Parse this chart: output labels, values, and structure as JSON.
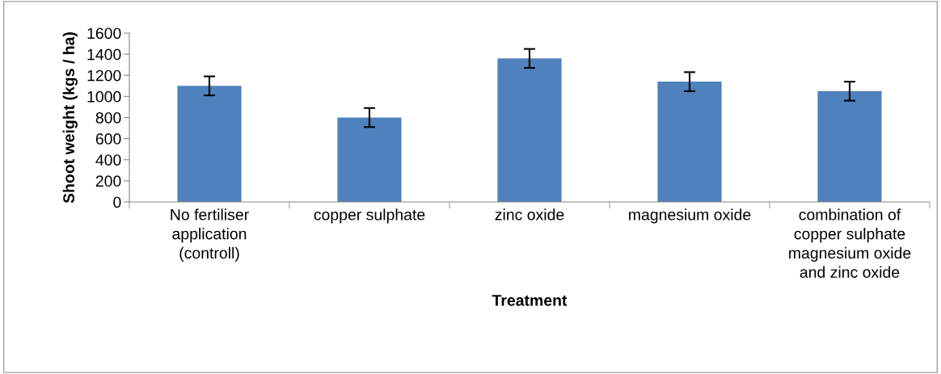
{
  "chart_data": {
    "type": "bar",
    "xlabel": "Treatment",
    "ylabel": "Shoot weight (kgs / ha)",
    "categories": [
      "No fertiliser\napplication\n(controll)",
      "copper sulphate",
      "zinc oxide",
      "magnesium oxide",
      "combination of\ncopper sulphate\nmagnesium oxide\nand zinc oxide"
    ],
    "values": [
      1100,
      800,
      1360,
      1140,
      1050
    ],
    "errors": [
      90,
      90,
      90,
      90,
      90
    ],
    "color": "#4f81bd",
    "ylim": [
      0,
      1600
    ],
    "yticks": [
      0,
      200,
      400,
      600,
      800,
      1000,
      1200,
      1400,
      1600
    ],
    "grid": false
  }
}
